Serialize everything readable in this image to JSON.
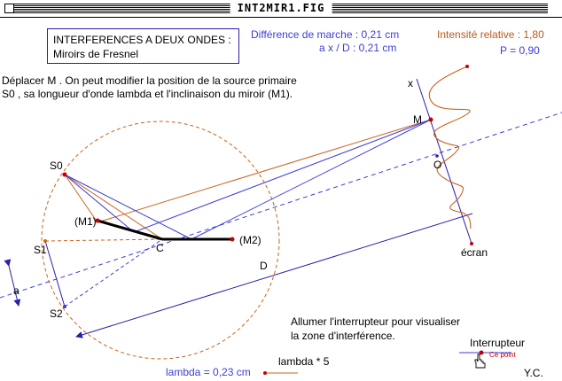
{
  "window": {
    "title": "INT2MIR1.FIG"
  },
  "info_box": {
    "line1": "INTERFERENCES A DEUX ONDES :",
    "line2": "Miroirs de Fresnel"
  },
  "readouts": {
    "path_difference": "Différence de marche : 0,21 cm",
    "ax_over_d": "a x / D : 0,21 cm",
    "relative_intensity": "Intensité relative : 1,80",
    "p_value": "P = 0,90"
  },
  "instructions": {
    "line1": "Déplacer M . On peut modifier la position de la source primaire",
    "line2": "S0 , sa longueur d'onde lambda et l'inclinaison du miroir (M1)."
  },
  "figure_labels": {
    "s0": "S0",
    "s1": "S1",
    "s2": "S2",
    "m1": "(M1)",
    "m2": "(M2)",
    "c": "C",
    "d": "D",
    "a": "a",
    "x": "x",
    "m": "M",
    "o": "O",
    "screen": "écran"
  },
  "switch_note": {
    "line1": "Allumer l'interrupteur pour visualiser",
    "line2": "la zone d'interférence."
  },
  "switch": {
    "label": "Interrupteur",
    "hint": "Ce point"
  },
  "lambda": {
    "value_label": "lambda = 0,23 cm",
    "scale_label": "lambda * 5"
  },
  "author": "Y.C.",
  "colors": {
    "blue": "#3c3cd8",
    "orange": "#c8641e",
    "red": "#c40000",
    "ink": "#000000"
  },
  "icons": {
    "pointer": "hand-pointer-icon"
  }
}
